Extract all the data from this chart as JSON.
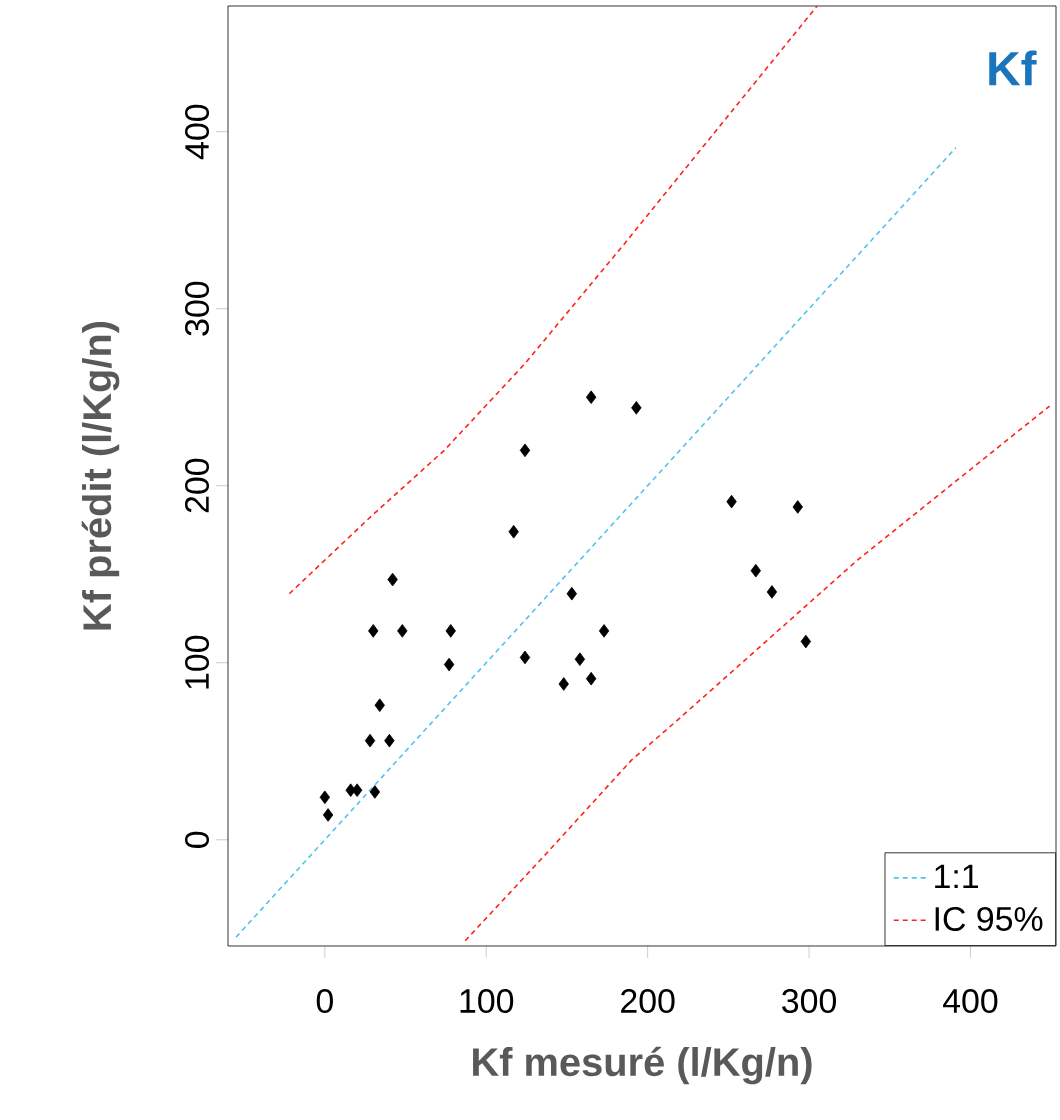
{
  "chart_data": {
    "type": "scatter",
    "xlabel": "Kf mesuré (l/Kg/n)",
    "ylabel": "Kf prédit (l/Kg/n)",
    "annotations": [
      "Kf"
    ],
    "xlim": [
      -60,
      453
    ],
    "ylim": [
      -60,
      471
    ],
    "xticks": [
      0,
      100,
      200,
      300,
      400
    ],
    "yticks": [
      0,
      100,
      200,
      300,
      400
    ],
    "legend": "bottom right",
    "series": [
      {
        "color": "#000000",
        "marker": "diamond",
        "x": [
          165,
          193,
          124,
          117,
          42,
          153,
          30,
          48,
          78,
          173,
          77,
          124,
          158,
          148,
          165,
          34,
          28,
          40,
          0,
          2,
          16,
          20,
          31,
          252,
          293,
          267,
          277,
          298
        ],
        "values": [
          250,
          244,
          220,
          174,
          147,
          139,
          118,
          118,
          118,
          118,
          99,
          103,
          102,
          88,
          91,
          76,
          56,
          56,
          24,
          14,
          28,
          28,
          27,
          191,
          188,
          152,
          140,
          112
        ]
      },
      {
        "type": "line",
        "name": "1:1",
        "color": "#4fc3ea",
        "line_style": "dashed",
        "x": [
          -55,
          391
        ],
        "values": [
          -55,
          391
        ]
      },
      {
        "type": "line",
        "name": "IC 95%",
        "color": "#ff2020",
        "line_style": "dashed",
        "x": [
          -22,
          29,
          74,
          124,
          185,
          305
        ],
        "values": [
          139,
          183,
          220,
          269,
          336,
          471
        ]
      },
      {
        "type": "line",
        "color": "#ff2020",
        "line_style": "dashed",
        "x": [
          87,
          136,
          190,
          219,
          330,
          449
        ],
        "values": [
          -57,
          -9,
          45,
          68,
          158,
          245
        ]
      }
    ]
  }
}
